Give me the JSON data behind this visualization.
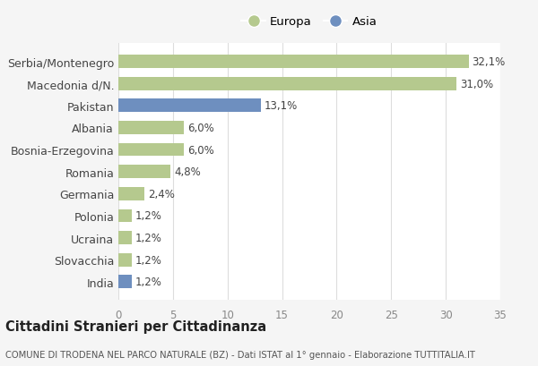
{
  "categories": [
    "Serbia/Montenegro",
    "Macedonia d/N.",
    "Pakistan",
    "Albania",
    "Bosnia-Erzegovina",
    "Romania",
    "Germania",
    "Polonia",
    "Ucraina",
    "Slovacchia",
    "India"
  ],
  "values": [
    32.1,
    31.0,
    13.1,
    6.0,
    6.0,
    4.8,
    2.4,
    1.2,
    1.2,
    1.2,
    1.2
  ],
  "labels": [
    "32,1%",
    "31,0%",
    "13,1%",
    "6,0%",
    "6,0%",
    "4,8%",
    "2,4%",
    "1,2%",
    "1,2%",
    "1,2%",
    "1,2%"
  ],
  "continent": [
    "Europa",
    "Europa",
    "Asia",
    "Europa",
    "Europa",
    "Europa",
    "Europa",
    "Europa",
    "Europa",
    "Europa",
    "Asia"
  ],
  "color_europa": "#b5c98e",
  "color_asia": "#6e8fbf",
  "bg_color": "#f5f5f5",
  "plot_bg_color": "#ffffff",
  "grid_color": "#dddddd",
  "title": "Cittadini Stranieri per Cittadinanza",
  "subtitle": "COMUNE DI TRODENA NEL PARCO NATURALE (BZ) - Dati ISTAT al 1° gennaio - Elaborazione TUTTITALIA.IT",
  "legend_europa": "Europa",
  "legend_asia": "Asia",
  "xlim": [
    0,
    35
  ],
  "xticks": [
    0,
    5,
    10,
    15,
    20,
    25,
    30,
    35
  ]
}
